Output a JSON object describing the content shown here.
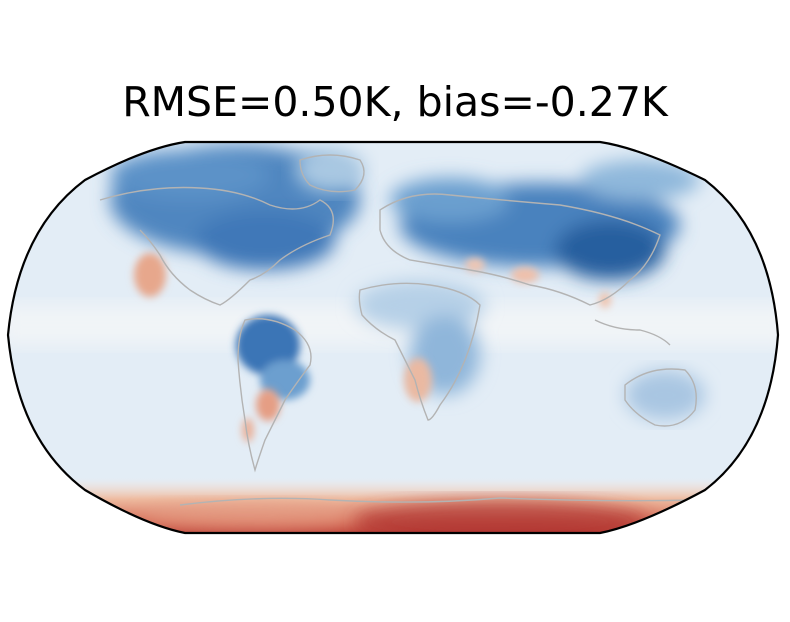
{
  "figure": {
    "title": "RMSE=0.50K, bias=-0.27K",
    "projection": "Robinson",
    "colormap": "RdBu_r",
    "colors": {
      "cold_strong": "#2166ac",
      "cold_mid": "#6fa3cf",
      "cold_light": "#dbe9f4",
      "neutral": "#f4f4f4",
      "warm_light": "#f2cbb5",
      "warm_mid": "#d6604d",
      "warm_strong": "#b2182b",
      "coastline": "#b0b0b0",
      "frame": "#000000"
    }
  }
}
